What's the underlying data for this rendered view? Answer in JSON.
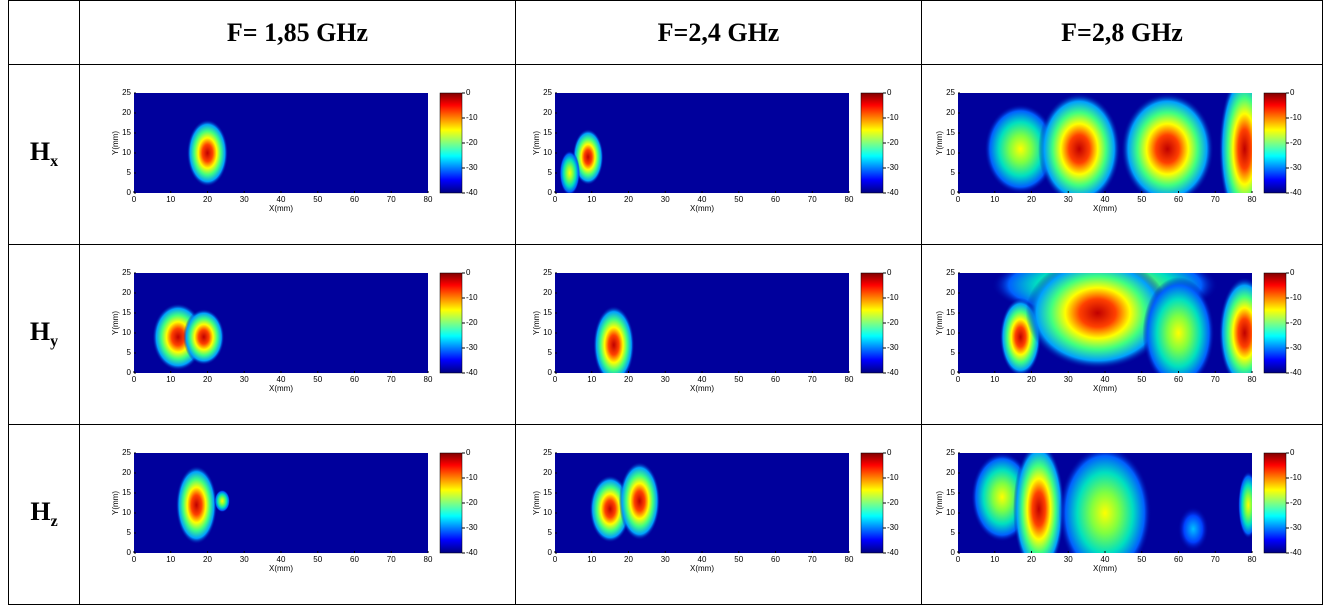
{
  "header": {
    "columns": [
      "F= 1,85 GHz",
      "F=2,4 GHz",
      "F=2,8 GHz"
    ]
  },
  "rows": [
    {
      "label": "H",
      "subscript": "x"
    },
    {
      "label": "H",
      "subscript": "y"
    },
    {
      "label": "H",
      "subscript": "z"
    }
  ],
  "axes": {
    "xlabel": "X(mm)",
    "ylabel": "Y(mm)",
    "xticks": [
      0,
      10,
      20,
      30,
      40,
      50,
      60,
      70,
      80
    ],
    "yticks": [
      0,
      5,
      10,
      15,
      20,
      25
    ],
    "colorbar_ticks": [
      0,
      -10,
      -20,
      -30,
      -40
    ]
  }
}
